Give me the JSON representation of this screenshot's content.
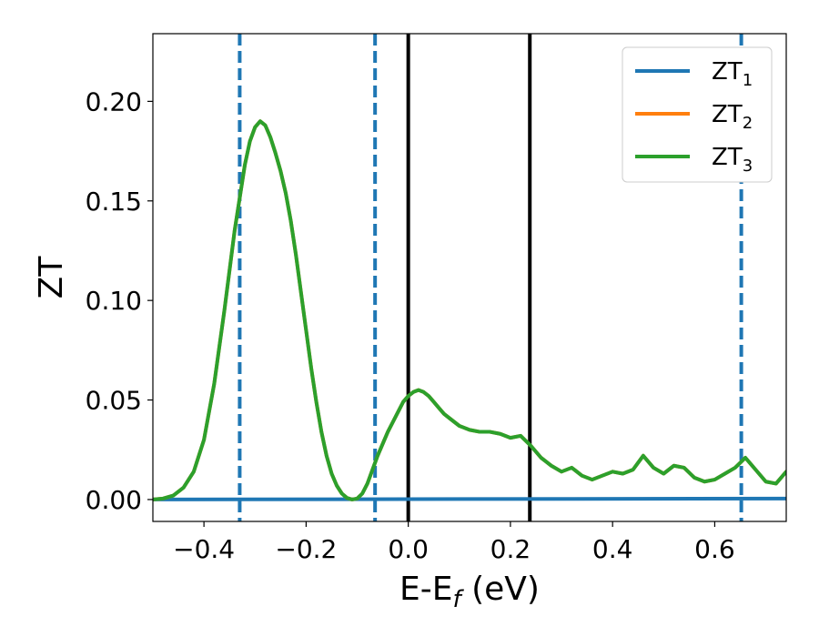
{
  "chart_data": {
    "type": "line",
    "xlabel": {
      "main": "E-E",
      "sub": "f",
      "unit": " (eV)"
    },
    "ylabel": "ZT",
    "xlim": [
      -0.5,
      0.74
    ],
    "ylim": [
      -0.011,
      0.234
    ],
    "x_ticks": [
      -0.4,
      -0.2,
      0.0,
      0.2,
      0.4,
      0.6
    ],
    "x_tick_labels": [
      "−0.4",
      "−0.2",
      "0.0",
      "0.2",
      "0.4",
      "0.6"
    ],
    "y_ticks": [
      0.0,
      0.05,
      0.1,
      0.15,
      0.2
    ],
    "y_tick_labels": [
      "0.00",
      "0.05",
      "0.10",
      "0.15",
      "0.20"
    ],
    "grid": false,
    "legend_position": "top-right",
    "series": [
      {
        "name": "ZT",
        "name_sub": "1",
        "color": "#1f77b4",
        "x": [
          -0.5,
          0.74
        ],
        "y": [
          0.0,
          0.0005
        ]
      },
      {
        "name": "ZT",
        "name_sub": "2",
        "color": "#ff7f0e",
        "x": [
          -0.5,
          -0.48,
          -0.46,
          -0.44,
          -0.42,
          -0.4,
          -0.38,
          -0.36,
          -0.34,
          -0.32,
          -0.31,
          -0.3,
          -0.29,
          -0.28,
          -0.27,
          -0.26,
          -0.25,
          -0.24,
          -0.23,
          -0.22,
          -0.21,
          -0.2,
          -0.19,
          -0.18,
          -0.17,
          -0.16,
          -0.15,
          -0.14,
          -0.13,
          -0.12,
          -0.11,
          -0.1,
          -0.09,
          -0.08,
          -0.07,
          -0.06,
          -0.05,
          -0.04,
          -0.03,
          -0.02,
          -0.01,
          0.0,
          0.01,
          0.02,
          0.03,
          0.04,
          0.05,
          0.06,
          0.07,
          0.08,
          0.09,
          0.1,
          0.12,
          0.14,
          0.16,
          0.18,
          0.2,
          0.22,
          0.24,
          0.26,
          0.28,
          0.3,
          0.32,
          0.34,
          0.36,
          0.38,
          0.4,
          0.42,
          0.44,
          0.46,
          0.48,
          0.5,
          0.52,
          0.54,
          0.56,
          0.58,
          0.6,
          0.62,
          0.64,
          0.66,
          0.68,
          0.7,
          0.72,
          0.74
        ],
        "y": [
          0.0,
          0.0005,
          0.002,
          0.006,
          0.014,
          0.03,
          0.058,
          0.095,
          0.135,
          0.168,
          0.18,
          0.187,
          0.19,
          0.188,
          0.182,
          0.174,
          0.165,
          0.154,
          0.14,
          0.123,
          0.104,
          0.085,
          0.066,
          0.049,
          0.034,
          0.022,
          0.013,
          0.007,
          0.003,
          0.0008,
          0.0,
          0.0005,
          0.003,
          0.008,
          0.015,
          0.022,
          0.028,
          0.034,
          0.039,
          0.044,
          0.049,
          0.052,
          0.054,
          0.055,
          0.054,
          0.052,
          0.049,
          0.046,
          0.043,
          0.041,
          0.039,
          0.037,
          0.035,
          0.034,
          0.034,
          0.033,
          0.031,
          0.032,
          0.027,
          0.021,
          0.017,
          0.014,
          0.016,
          0.012,
          0.01,
          0.012,
          0.014,
          0.013,
          0.015,
          0.022,
          0.016,
          0.013,
          0.017,
          0.016,
          0.011,
          0.009,
          0.01,
          0.013,
          0.016,
          0.021,
          0.015,
          0.009,
          0.008,
          0.014
        ]
      },
      {
        "name": "ZT",
        "name_sub": "3",
        "color": "#2ca02c",
        "x": [
          -0.5,
          -0.48,
          -0.46,
          -0.44,
          -0.42,
          -0.4,
          -0.38,
          -0.36,
          -0.34,
          -0.32,
          -0.31,
          -0.3,
          -0.29,
          -0.28,
          -0.27,
          -0.26,
          -0.25,
          -0.24,
          -0.23,
          -0.22,
          -0.21,
          -0.2,
          -0.19,
          -0.18,
          -0.17,
          -0.16,
          -0.15,
          -0.14,
          -0.13,
          -0.12,
          -0.11,
          -0.1,
          -0.09,
          -0.08,
          -0.07,
          -0.06,
          -0.05,
          -0.04,
          -0.03,
          -0.02,
          -0.01,
          0.0,
          0.01,
          0.02,
          0.03,
          0.04,
          0.05,
          0.06,
          0.07,
          0.08,
          0.09,
          0.1,
          0.12,
          0.14,
          0.16,
          0.18,
          0.2,
          0.22,
          0.24,
          0.26,
          0.28,
          0.3,
          0.32,
          0.34,
          0.36,
          0.38,
          0.4,
          0.42,
          0.44,
          0.46,
          0.48,
          0.5,
          0.52,
          0.54,
          0.56,
          0.58,
          0.6,
          0.62,
          0.64,
          0.66,
          0.68,
          0.7,
          0.72,
          0.74
        ],
        "y": [
          0.0,
          0.0005,
          0.002,
          0.006,
          0.014,
          0.03,
          0.058,
          0.095,
          0.135,
          0.168,
          0.18,
          0.187,
          0.19,
          0.188,
          0.182,
          0.174,
          0.165,
          0.154,
          0.14,
          0.123,
          0.104,
          0.085,
          0.066,
          0.049,
          0.034,
          0.022,
          0.013,
          0.007,
          0.003,
          0.0008,
          0.0,
          0.0005,
          0.003,
          0.008,
          0.015,
          0.022,
          0.028,
          0.034,
          0.039,
          0.044,
          0.049,
          0.052,
          0.054,
          0.055,
          0.054,
          0.052,
          0.049,
          0.046,
          0.043,
          0.041,
          0.039,
          0.037,
          0.035,
          0.034,
          0.034,
          0.033,
          0.031,
          0.032,
          0.027,
          0.021,
          0.017,
          0.014,
          0.016,
          0.012,
          0.01,
          0.012,
          0.014,
          0.013,
          0.015,
          0.022,
          0.016,
          0.013,
          0.017,
          0.016,
          0.011,
          0.009,
          0.01,
          0.013,
          0.016,
          0.021,
          0.015,
          0.009,
          0.008,
          0.014
        ]
      }
    ],
    "vertical_lines": [
      {
        "x": -0.33,
        "style": "dashed",
        "color": "#1f77b4"
      },
      {
        "x": -0.065,
        "style": "dashed",
        "color": "#1f77b4"
      },
      {
        "x": 0.0,
        "style": "solid",
        "color": "#000000"
      },
      {
        "x": 0.238,
        "style": "solid",
        "color": "#000000"
      },
      {
        "x": 0.652,
        "style": "dashed",
        "color": "#1f77b4"
      }
    ]
  }
}
